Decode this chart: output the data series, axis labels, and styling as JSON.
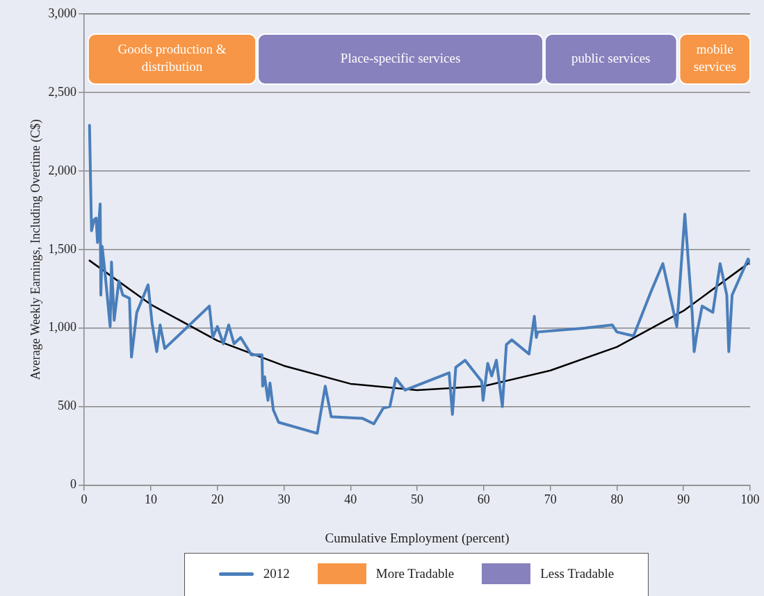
{
  "chart_data": {
    "type": "line",
    "xlabel": "Cumulative Employment (percent)",
    "ylabel": "Average Weekly Earnings, Including Overtime (C$)",
    "xlim": [
      0,
      100
    ],
    "xticks": [
      0,
      10,
      20,
      30,
      40,
      50,
      60,
      70,
      80,
      90,
      100
    ],
    "ylim": [
      0,
      3000
    ],
    "yticks": [
      0,
      500,
      {
        "value": 1000,
        "label": "1,000"
      },
      {
        "value": 1500,
        "label": "1,500"
      },
      {
        "value": 2000,
        "label": "2,000"
      },
      {
        "value": 2500,
        "label": "2,500"
      },
      {
        "value": 3000,
        "label": "3,000"
      }
    ],
    "grid": "y",
    "legend": "bottom",
    "marker": "none",
    "line_style": "solid",
    "series": [
      {
        "name": "2012",
        "color": "#4a7ebb",
        "x": [
          0.8,
          1.1,
          1.5,
          1.8,
          2.0,
          2.2,
          2.4,
          2.5,
          2.7,
          3.2,
          3.9,
          4.1,
          4.5,
          5.2,
          5.8,
          6.8,
          7.1,
          7.9,
          9.6,
          10.2,
          10.9,
          11.4,
          12.1,
          18.8,
          19.3,
          20.0,
          20.9,
          21.7,
          22.5,
          23.5,
          25.1,
          26.3,
          26.7,
          26.8,
          27.1,
          27.6,
          27.9,
          28.4,
          29.2,
          35.0,
          36.2,
          37.1,
          41.8,
          43.5,
          44.9,
          45.9,
          46.8,
          48.2,
          54.8,
          55.3,
          55.8,
          57.2,
          59.7,
          59.9,
          60.6,
          61.2,
          61.9,
          62.8,
          63.4,
          64.2,
          66.8,
          67.6,
          67.9,
          68.1,
          75.2,
          79.3,
          80.0,
          82.5,
          85.1,
          86.9,
          89.0,
          90.2,
          91.3,
          91.6,
          92.0,
          92.8,
          94.4,
          95.5,
          96.5,
          96.8,
          97.3,
          99.7,
          100
        ],
        "values": [
          2290,
          1620,
          1690,
          1700,
          1545,
          1675,
          1790,
          1210,
          1520,
          1320,
          1010,
          1420,
          1050,
          1300,
          1210,
          1190,
          815,
          1100,
          1275,
          1030,
          850,
          1020,
          870,
          1140,
          940,
          1010,
          900,
          1020,
          900,
          940,
          830,
          830,
          830,
          630,
          690,
          540,
          650,
          480,
          400,
          330,
          630,
          435,
          425,
          390,
          490,
          500,
          680,
          605,
          715,
          450,
          750,
          795,
          660,
          540,
          775,
          695,
          795,
          500,
          895,
          925,
          835,
          1075,
          940,
          975,
          1000,
          1020,
          975,
          950,
          1230,
          1410,
          1010,
          1725,
          1100,
          850,
          965,
          1140,
          1100,
          1410,
          1210,
          850,
          1210,
          1440,
          1410
        ]
      },
      {
        "type": "line",
        "color": "#000000",
        "x": [
          0.8,
          10,
          20,
          30,
          40,
          50,
          60,
          70,
          80,
          90,
          100
        ],
        "values": [
          1430,
          1150,
          920,
          760,
          645,
          605,
          630,
          730,
          880,
          1110,
          1420
        ]
      }
    ],
    "bands": [
      {
        "axis": "x",
        "from": 0.6,
        "to": 25.8,
        "label": "Goods production & distribution",
        "color": "#f79646"
      },
      {
        "axis": "x",
        "from": 26.1,
        "to": 68.9,
        "label": "Place-specific services",
        "color": "#8781bd"
      },
      {
        "axis": "x",
        "from": 69.2,
        "to": 89.0,
        "label": "public services",
        "color": "#8781bd"
      },
      {
        "axis": "x",
        "from": 89.4,
        "to": 100,
        "label": "mobile services",
        "color": "#f79646"
      }
    ],
    "annotations": [
      "More Tradable",
      "Less Tradable"
    ]
  }
}
